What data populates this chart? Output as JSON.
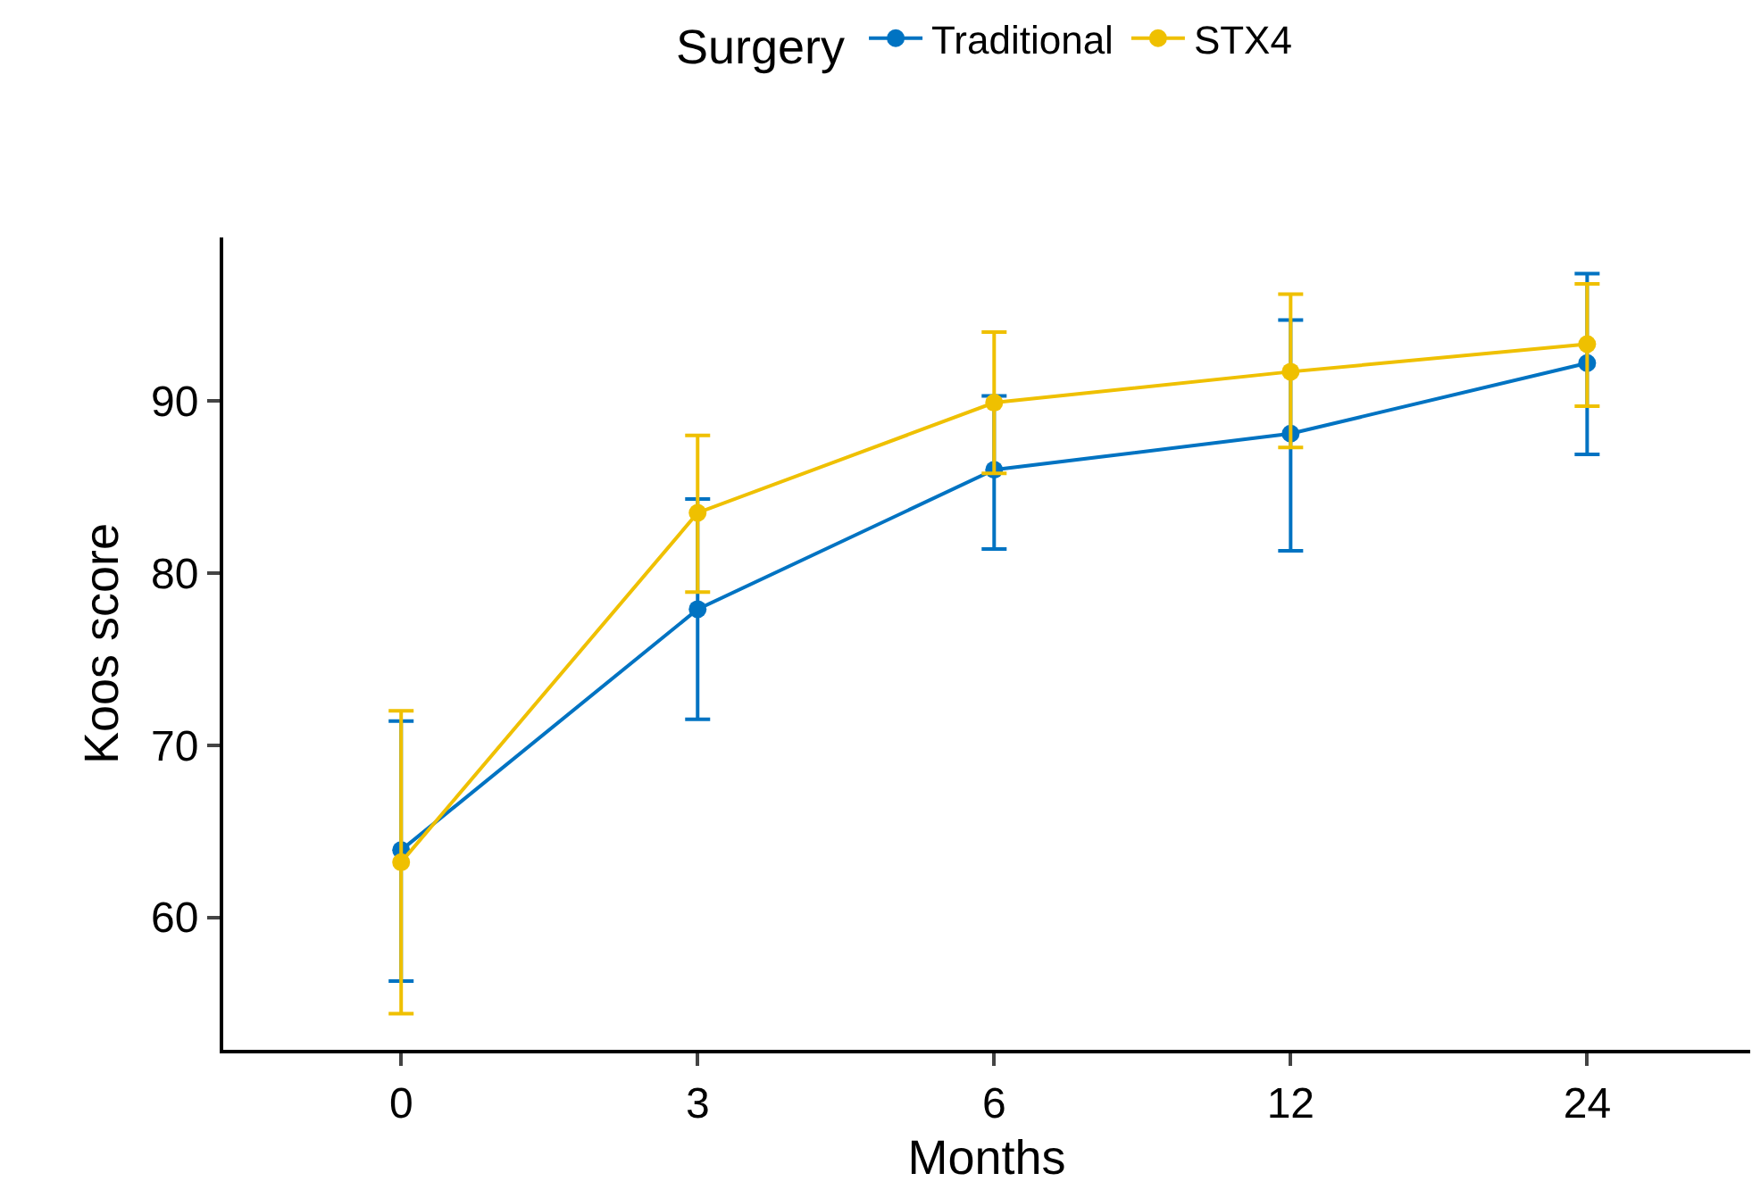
{
  "chart_data": {
    "type": "line",
    "xlabel": "Months",
    "ylabel": "Koos score",
    "legend_title": "Surgery",
    "legend": "top",
    "marker": "circle",
    "line_style": "solid",
    "grid": false,
    "categories": [
      "0",
      "3",
      "6",
      "12",
      "24"
    ],
    "ylim": [
      52.3,
      99.5
    ],
    "yticks": [
      60,
      70,
      80,
      90
    ],
    "series": [
      {
        "name": "Traditional",
        "color": "#0073c2",
        "values": [
          63.9,
          77.9,
          86.0,
          88.1,
          92.2
        ],
        "errors": [
          [
            56.3,
            71.4
          ],
          [
            71.5,
            84.3
          ],
          [
            81.4,
            90.3
          ],
          [
            81.3,
            94.7
          ],
          [
            86.9,
            97.4
          ]
        ]
      },
      {
        "name": "STX4",
        "color": "#efc000",
        "values": [
          63.2,
          83.5,
          89.9,
          91.7,
          93.3
        ],
        "errors": [
          [
            54.4,
            72.0
          ],
          [
            78.9,
            88.0
          ],
          [
            85.8,
            94.0
          ],
          [
            87.3,
            96.2
          ],
          [
            89.7,
            96.8
          ]
        ]
      }
    ]
  }
}
